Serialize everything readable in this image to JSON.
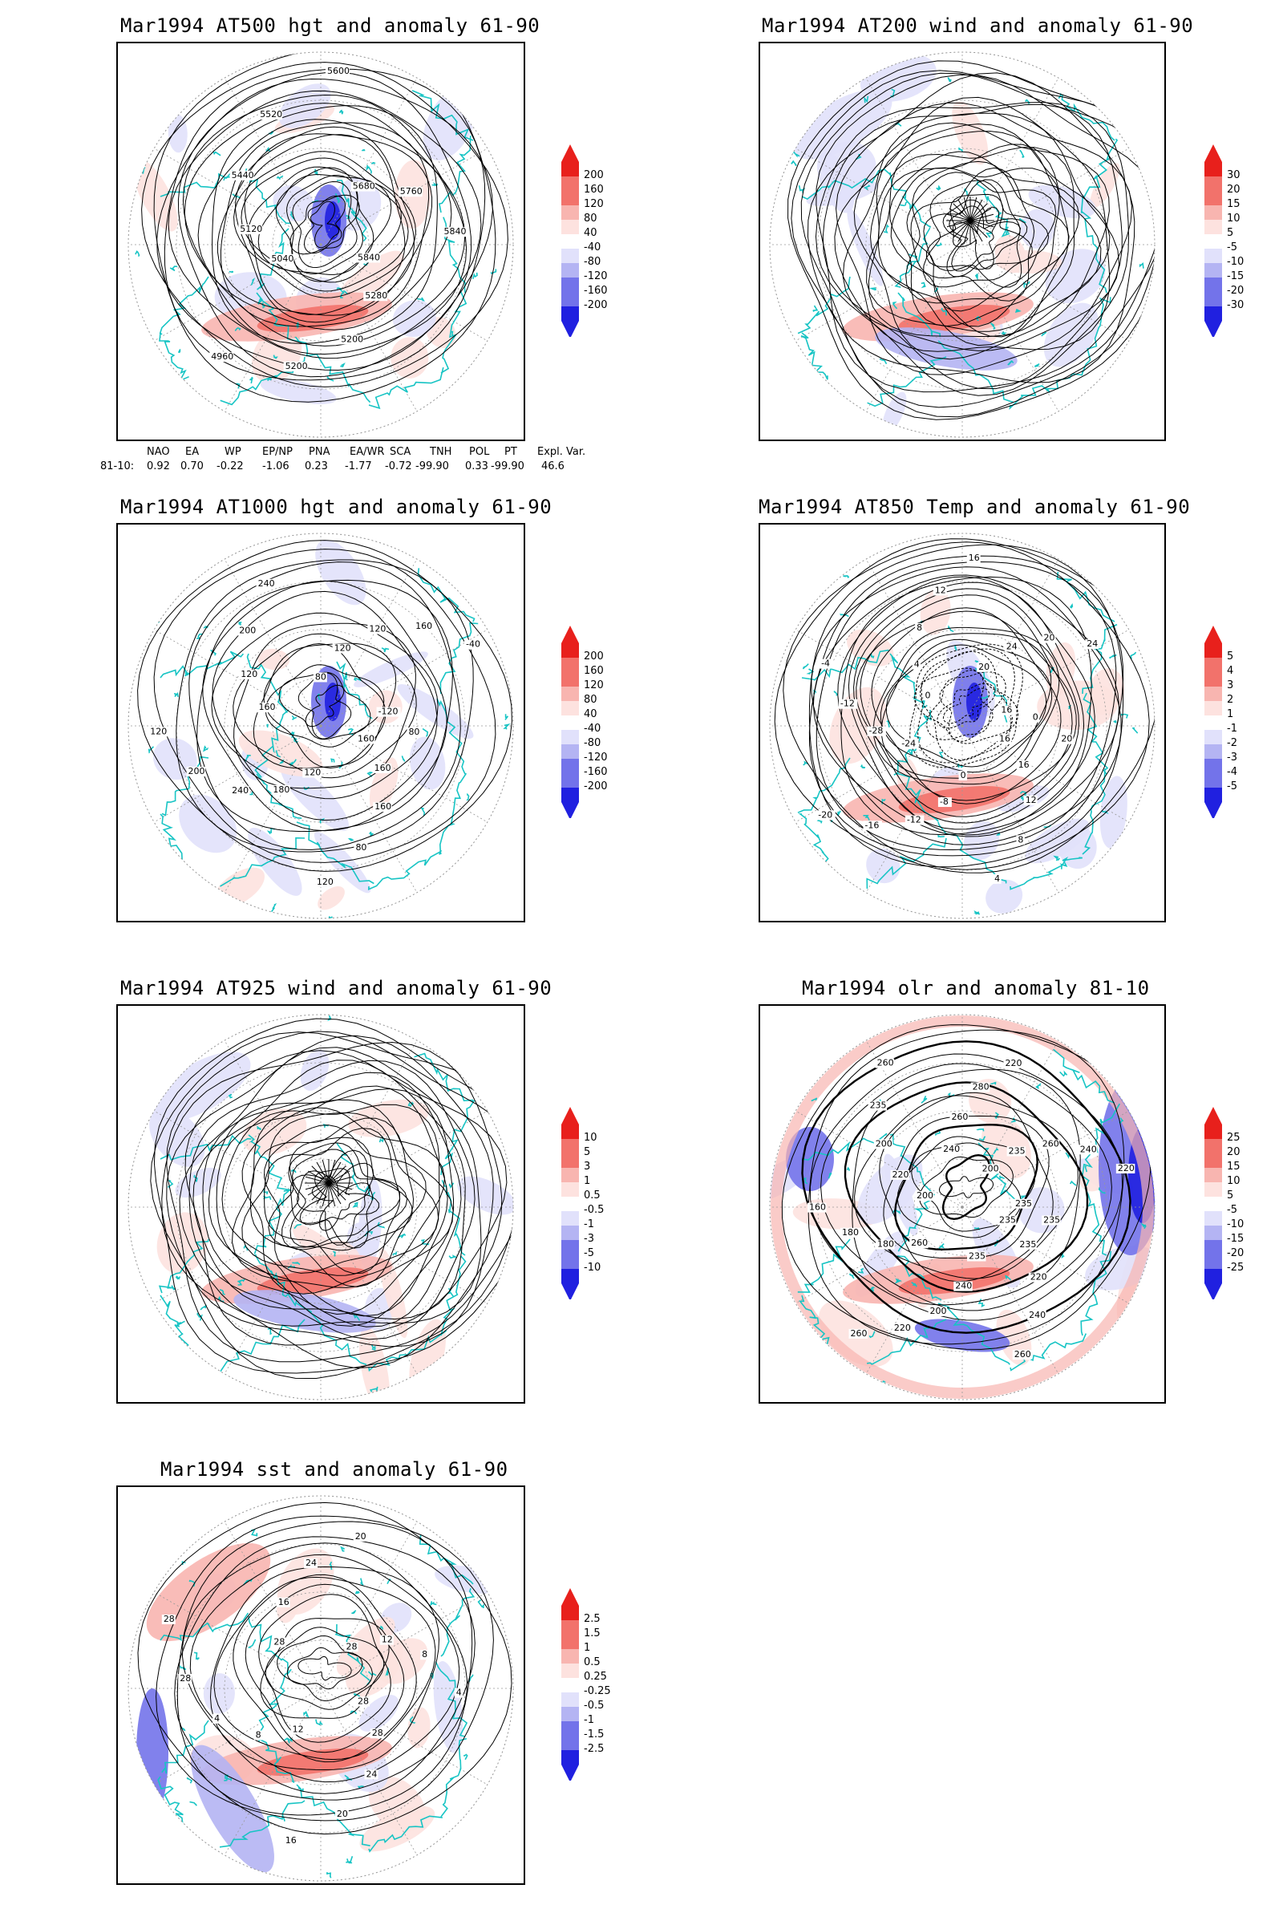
{
  "colors": {
    "red_strong": "#e8201c",
    "red_mid": "#f2726b",
    "red_light": "#f8b5b0",
    "red_pale": "#fde2df",
    "blue_pale": "#e1e1fb",
    "blue_light": "#b4b4f3",
    "blue_mid": "#7373ea",
    "blue_strong": "#2020e0",
    "coast": "#17c4c4",
    "contour": "#000000",
    "grid": "#999999"
  },
  "panels": [
    {
      "id": "z500",
      "title": "Mar1994 AT500 hgt and anomaly 61-90",
      "cbar": [
        "200",
        "160",
        "120",
        "80",
        "40",
        "-40",
        "-80",
        "-120",
        "-160",
        "-200"
      ],
      "contour_labels": [
        "5840",
        "5280",
        "5200",
        "5200",
        "4960",
        "5040",
        "5120",
        "5440",
        "5520",
        "5600",
        "5680",
        "5760",
        "5840"
      ],
      "extras": [
        "red-arc",
        "blue-center"
      ]
    },
    {
      "id": "w200",
      "title": "Mar1994 AT200 wind and anomaly 61-90",
      "cbar": [
        "30",
        "20",
        "15",
        "10",
        "5",
        "-5",
        "-10",
        "-15",
        "-20",
        "-30"
      ],
      "contour_labels": [],
      "extras": [
        "streamlines",
        "red-arc",
        "blue-arc"
      ]
    },
    {
      "id": "z1000",
      "title": "Mar1994 AT1000 hgt and anomaly 61-90",
      "cbar": [
        "200",
        "160",
        "120",
        "80",
        "40",
        "-40",
        "-80",
        "-120",
        "-160",
        "-200"
      ],
      "contour_labels": [
        "160",
        "160",
        "160",
        "80",
        "120",
        "120",
        "180",
        "240",
        "200",
        "120",
        "160",
        "120",
        "200",
        "240",
        "80",
        "120",
        "120",
        "160",
        "-40",
        "-120",
        "80"
      ],
      "extras": [
        "blue-center"
      ]
    },
    {
      "id": "t850",
      "title": "Mar1994 AT850 Temp and anomaly 61-90",
      "cbar": [
        "5",
        "4",
        "3",
        "2",
        "1",
        "-1",
        "-2",
        "-3",
        "-4",
        "-5"
      ],
      "contour_labels": [
        "16",
        "16",
        "12",
        "8",
        "4",
        "0",
        "-8",
        "-12",
        "-16",
        "-20",
        "-24",
        "-28",
        "-12",
        "-4",
        "0",
        "4",
        "8",
        "12",
        "16",
        "20",
        "24",
        "20",
        "24",
        "16",
        "0",
        "20"
      ],
      "extras": [
        "blue-center",
        "red-arc"
      ]
    },
    {
      "id": "w925",
      "title": "Mar1994 AT925 wind and anomaly 61-90",
      "cbar": [
        "10",
        "5",
        "3",
        "1",
        "0.5",
        "-0.5",
        "-1",
        "-3",
        "-5",
        "-10"
      ],
      "contour_labels": [],
      "extras": [
        "streamlines",
        "red-arc",
        "blue-arc"
      ]
    },
    {
      "id": "olr",
      "title": "Mar1994 olr and anomaly 81-10",
      "cbar": [
        "25",
        "20",
        "15",
        "10",
        "5",
        "-5",
        "-10",
        "-15",
        "-20",
        "-25"
      ],
      "contour_labels": [
        "235",
        "235",
        "220",
        "240",
        "260",
        "235",
        "240",
        "200",
        "220",
        "260",
        "260",
        "180",
        "180",
        "160",
        "200",
        "220",
        "200",
        "235",
        "260",
        "240",
        "260",
        "280",
        "220",
        "200",
        "235",
        "260",
        "240",
        "220",
        "235",
        "235"
      ],
      "extras": [
        "blue-right",
        "red-arc"
      ]
    },
    {
      "id": "sst",
      "title": "Mar1994 sst and anomaly 61-90",
      "cbar": [
        "2.5",
        "1.5",
        "1",
        "0.5",
        "0.25",
        "-0.25",
        "-0.5",
        "-1",
        "-1.5",
        "-2.5"
      ],
      "contour_labels": [
        "28",
        "28",
        "24",
        "20",
        "16",
        "12",
        "8",
        "4",
        "28",
        "28",
        "28",
        "16",
        "24",
        "20",
        "28",
        "12",
        "8",
        "4"
      ],
      "extras": [
        "red-arc",
        "blue-left"
      ]
    }
  ],
  "indices": {
    "headers": [
      "NAO",
      "EA",
      "WP",
      "EP/NP",
      "PNA",
      "EA/WR",
      "SCA",
      "TNH",
      "POL",
      "PT",
      "Expl. Var."
    ],
    "row_label": "81-10:",
    "values": [
      "0.92",
      "0.70",
      "-0.22",
      "-1.06",
      "0.23",
      "-1.77",
      "-0.72",
      "-99.90",
      "0.33",
      "-99.90",
      "46.6"
    ]
  }
}
